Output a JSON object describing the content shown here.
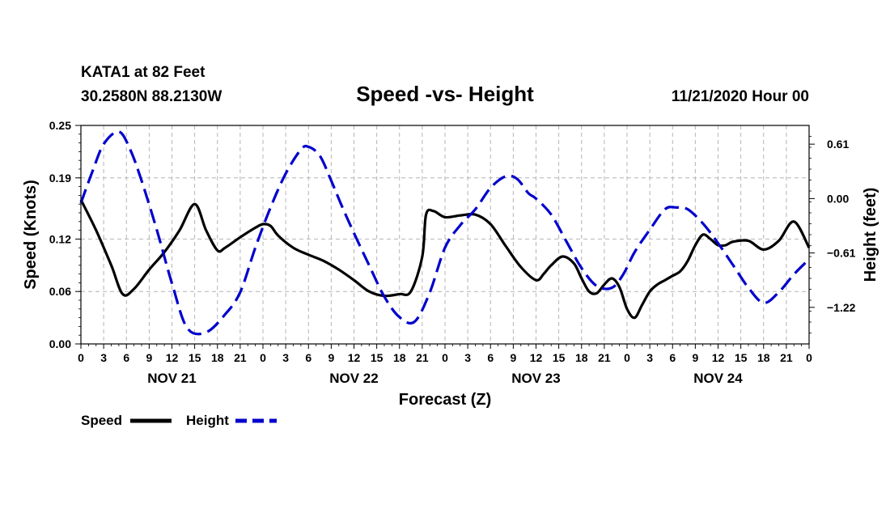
{
  "header": {
    "station": "KATA1 at 82 Feet",
    "coords": "30.2580N 88.2130W",
    "title": "Speed -vs- Height",
    "datetime": "11/21/2020 Hour 00"
  },
  "colors": {
    "speed": "#000000",
    "height": "#0000cc",
    "grid": "#b4b4b4"
  },
  "chart_data": {
    "type": "line",
    "title": "Speed -vs- Height",
    "xlabel": "Forecast (Z)",
    "ylabel": "Speed (Knots)",
    "y2label": "Height (feet)",
    "xlim": [
      0,
      96
    ],
    "ylim": [
      0,
      0.25
    ],
    "y2lim": [
      -1.63,
      0.82
    ],
    "x_ticks": [
      0,
      3,
      6,
      9,
      12,
      15,
      18,
      21,
      24,
      27,
      30,
      33,
      36,
      39,
      42,
      45,
      48,
      51,
      54,
      57,
      60,
      63,
      66,
      69,
      72,
      75,
      78,
      81,
      84,
      87,
      90,
      93,
      96
    ],
    "x_tick_labels": [
      "0",
      "3",
      "6",
      "9",
      "12",
      "15",
      "18",
      "21",
      "0",
      "3",
      "6",
      "9",
      "12",
      "15",
      "18",
      "21",
      "0",
      "3",
      "6",
      "9",
      "12",
      "15",
      "18",
      "21",
      "0",
      "3",
      "6",
      "9",
      "12",
      "15",
      "18",
      "21",
      "0"
    ],
    "y_ticks": [
      0,
      0.06,
      0.12,
      0.19,
      0.25
    ],
    "y_tick_labels": [
      "0.00",
      "0.06",
      "0.12",
      "0.19",
      "0.25"
    ],
    "y2_ticks": [
      0.61,
      0,
      -0.61,
      -1.22
    ],
    "y2_tick_labels": [
      "0.61",
      "0.00",
      "−0.61",
      "−1.22"
    ],
    "day_labels": [
      {
        "x": 12,
        "label": "NOV 21"
      },
      {
        "x": 36,
        "label": "NOV 22"
      },
      {
        "x": 60,
        "label": "NOV 23"
      },
      {
        "x": 84,
        "label": "NOV 24"
      }
    ],
    "series": [
      {
        "name": "Speed",
        "axis": "left",
        "style": "solid",
        "x": [
          0,
          2,
          4,
          5.5,
          7,
          9,
          11,
          13,
          15,
          16.5,
          18,
          19,
          21,
          23,
          24,
          25,
          26,
          28,
          30,
          32,
          34,
          36,
          38,
          40,
          42,
          43.5,
          45,
          45.5,
          46.5,
          48,
          50,
          52,
          54,
          56,
          58,
          60,
          61,
          62,
          63.5,
          65,
          66,
          67,
          68,
          69,
          70,
          71,
          72,
          73,
          74,
          75,
          76,
          77,
          78,
          79,
          80,
          81,
          82,
          83,
          84,
          85,
          86,
          88,
          90,
          92,
          94,
          96
        ],
        "values": [
          0.165,
          0.13,
          0.09,
          0.057,
          0.063,
          0.085,
          0.105,
          0.13,
          0.16,
          0.13,
          0.107,
          0.11,
          0.122,
          0.133,
          0.137,
          0.135,
          0.124,
          0.11,
          0.102,
          0.095,
          0.085,
          0.073,
          0.06,
          0.055,
          0.057,
          0.06,
          0.1,
          0.148,
          0.152,
          0.145,
          0.147,
          0.148,
          0.137,
          0.112,
          0.088,
          0.073,
          0.08,
          0.09,
          0.1,
          0.092,
          0.075,
          0.06,
          0.058,
          0.068,
          0.075,
          0.065,
          0.04,
          0.03,
          0.045,
          0.06,
          0.068,
          0.073,
          0.078,
          0.083,
          0.095,
          0.113,
          0.125,
          0.12,
          0.113,
          0.113,
          0.117,
          0.118,
          0.108,
          0.118,
          0.14,
          0.11
        ]
      },
      {
        "name": "Height",
        "axis": "right",
        "style": "dashed",
        "x": [
          0,
          1.5,
          3,
          5,
          6.5,
          8,
          10,
          12,
          14,
          16.5,
          19,
          21,
          23,
          25,
          27,
          29,
          30,
          31.5,
          33,
          35,
          38,
          40,
          42,
          44,
          46,
          48,
          50,
          52,
          54,
          56,
          57.5,
          59,
          60,
          62,
          64,
          66,
          68,
          70,
          71.5,
          73,
          75,
          77,
          78.5,
          80,
          82,
          84,
          86,
          88,
          90,
          92,
          94,
          96
        ],
        "values": [
          -0.05,
          0.3,
          0.61,
          0.75,
          0.55,
          0.2,
          -0.35,
          -0.95,
          -1.45,
          -1.5,
          -1.3,
          -1.05,
          -0.55,
          -0.1,
          0.28,
          0.55,
          0.58,
          0.48,
          0.2,
          -0.2,
          -0.75,
          -1.1,
          -1.33,
          -1.38,
          -1.05,
          -0.55,
          -0.3,
          -0.12,
          0.12,
          0.25,
          0.22,
          0.06,
          0.0,
          -0.18,
          -0.48,
          -0.78,
          -0.98,
          -1.0,
          -0.85,
          -0.6,
          -0.35,
          -0.12,
          -0.1,
          -0.12,
          -0.28,
          -0.5,
          -0.75,
          -1.0,
          -1.17,
          -1.05,
          -0.85,
          -0.68
        ]
      }
    ],
    "legend": {
      "placement": "bottom-left",
      "items": [
        "Speed",
        "Height"
      ]
    }
  }
}
